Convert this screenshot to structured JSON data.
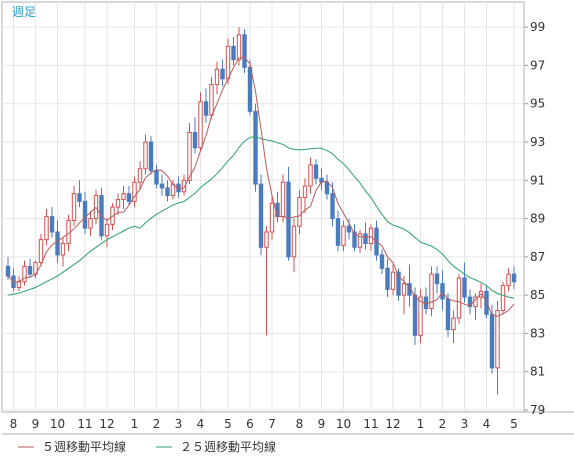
{
  "chart_data": {
    "type": "candlestick",
    "period_label": "週足",
    "xlabel": "",
    "ylabel": "",
    "ylim": [
      79,
      100
    ],
    "y_ticks": [
      99,
      97,
      95,
      93,
      91,
      89,
      87,
      85,
      83,
      81,
      79
    ],
    "x_ticks": [
      {
        "label": "8",
        "index": 1
      },
      {
        "label": "9",
        "index": 5
      },
      {
        "label": "10",
        "index": 9
      },
      {
        "label": "11",
        "index": 14
      },
      {
        "label": "12",
        "index": 18
      },
      {
        "label": "1",
        "index": 23
      },
      {
        "label": "2",
        "index": 27
      },
      {
        "label": "3",
        "index": 31
      },
      {
        "label": "4",
        "index": 35
      },
      {
        "label": "5",
        "index": 40
      },
      {
        "label": "6",
        "index": 44
      },
      {
        "label": "7",
        "index": 48
      },
      {
        "label": "8",
        "index": 53
      },
      {
        "label": "9",
        "index": 57
      },
      {
        "label": "10",
        "index": 61
      },
      {
        "label": "11",
        "index": 66
      },
      {
        "label": "12",
        "index": 70
      },
      {
        "label": "1",
        "index": 75
      },
      {
        "label": "2",
        "index": 79
      },
      {
        "label": "3",
        "index": 83
      },
      {
        "label": "4",
        "index": 87
      },
      {
        "label": "5",
        "index": 92
      }
    ],
    "ohlc": [
      [
        86.5,
        87.0,
        85.8,
        86.0
      ],
      [
        86.0,
        86.4,
        85.2,
        85.4
      ],
      [
        85.4,
        86.0,
        85.2,
        85.7
      ],
      [
        85.7,
        86.8,
        85.5,
        86.5
      ],
      [
        86.5,
        86.9,
        85.9,
        86.1
      ],
      [
        86.1,
        86.8,
        85.9,
        86.7
      ],
      [
        86.7,
        88.2,
        86.5,
        87.9
      ],
      [
        87.9,
        89.5,
        87.6,
        89.1
      ],
      [
        89.1,
        89.6,
        88.0,
        88.3
      ],
      [
        88.3,
        88.9,
        86.7,
        87.1
      ],
      [
        87.1,
        88.0,
        86.5,
        87.7
      ],
      [
        87.7,
        89.2,
        87.3,
        88.9
      ],
      [
        88.9,
        90.7,
        88.6,
        90.3
      ],
      [
        90.3,
        91.0,
        89.6,
        89.9
      ],
      [
        89.9,
        90.4,
        88.2,
        88.5
      ],
      [
        88.5,
        89.4,
        88.1,
        89.0
      ],
      [
        89.0,
        90.5,
        88.7,
        90.2
      ],
      [
        90.2,
        90.6,
        87.9,
        88.1
      ],
      [
        88.1,
        89.0,
        87.5,
        88.7
      ],
      [
        88.7,
        89.8,
        88.4,
        89.6
      ],
      [
        89.6,
        90.3,
        89.2,
        90.0
      ],
      [
        90.0,
        90.7,
        89.5,
        90.3
      ],
      [
        90.3,
        90.7,
        89.7,
        89.9
      ],
      [
        89.9,
        91.2,
        89.6,
        90.9
      ],
      [
        90.9,
        92.0,
        90.5,
        91.6
      ],
      [
        91.6,
        93.4,
        91.3,
        93.0
      ],
      [
        93.0,
        93.3,
        91.3,
        91.5
      ],
      [
        91.5,
        91.8,
        90.6,
        90.8
      ],
      [
        90.8,
        91.3,
        90.2,
        90.6
      ],
      [
        90.6,
        91.0,
        89.9,
        90.2
      ],
      [
        90.2,
        91.0,
        90.0,
        90.8
      ],
      [
        90.8,
        91.2,
        90.1,
        90.4
      ],
      [
        90.4,
        91.3,
        90.2,
        91.0
      ],
      [
        91.0,
        94.0,
        90.8,
        93.5
      ],
      [
        93.5,
        94.3,
        92.4,
        92.7
      ],
      [
        92.7,
        95.6,
        92.5,
        95.1
      ],
      [
        95.1,
        95.8,
        94.0,
        94.4
      ],
      [
        94.4,
        96.4,
        94.2,
        96.0
      ],
      [
        96.0,
        97.2,
        95.5,
        96.8
      ],
      [
        96.8,
        97.3,
        95.9,
        96.3
      ],
      [
        96.3,
        98.4,
        96.0,
        98.0
      ],
      [
        98.0,
        98.5,
        97.0,
        97.3
      ],
      [
        97.3,
        99.0,
        97.0,
        98.6
      ],
      [
        98.6,
        98.9,
        96.6,
        96.9
      ],
      [
        96.9,
        97.3,
        94.4,
        94.6
      ],
      [
        94.6,
        95.0,
        90.4,
        90.8
      ],
      [
        90.8,
        91.3,
        87.1,
        87.5
      ],
      [
        87.5,
        88.6,
        82.9,
        88.3
      ],
      [
        88.3,
        90.2,
        87.9,
        89.8
      ],
      [
        89.8,
        90.4,
        88.8,
        89.1
      ],
      [
        89.1,
        91.3,
        88.8,
        90.9
      ],
      [
        90.9,
        91.7,
        86.8,
        87.0
      ],
      [
        87.0,
        89.0,
        86.2,
        88.6
      ],
      [
        88.6,
        90.5,
        88.2,
        90.1
      ],
      [
        90.1,
        91.1,
        89.3,
        90.7
      ],
      [
        90.7,
        92.2,
        90.3,
        91.8
      ],
      [
        91.8,
        92.1,
        90.8,
        91.1
      ],
      [
        91.1,
        91.6,
        90.5,
        90.9
      ],
      [
        90.9,
        91.3,
        90.0,
        90.3
      ],
      [
        90.3,
        90.9,
        88.6,
        89.0
      ],
      [
        89.0,
        89.4,
        87.3,
        87.6
      ],
      [
        87.6,
        88.9,
        87.3,
        88.6
      ],
      [
        88.6,
        89.0,
        87.9,
        88.3
      ],
      [
        88.3,
        88.7,
        87.3,
        87.5
      ],
      [
        87.5,
        88.4,
        87.2,
        88.2
      ],
      [
        88.2,
        88.8,
        87.4,
        87.7
      ],
      [
        87.7,
        88.7,
        87.3,
        88.5
      ],
      [
        88.5,
        88.9,
        86.8,
        87.1
      ],
      [
        87.1,
        87.4,
        86.1,
        86.4
      ],
      [
        86.4,
        86.9,
        84.9,
        85.3
      ],
      [
        85.3,
        86.6,
        85.0,
        86.2
      ],
      [
        86.2,
        86.4,
        84.7,
        85.0
      ],
      [
        85.0,
        86.0,
        84.0,
        85.6
      ],
      [
        85.6,
        86.6,
        84.4,
        85.0
      ],
      [
        85.0,
        85.4,
        82.4,
        82.9
      ],
      [
        82.9,
        85.3,
        82.5,
        84.9
      ],
      [
        84.9,
        85.4,
        84.0,
        84.3
      ],
      [
        84.3,
        86.5,
        83.9,
        86.1
      ],
      [
        86.1,
        86.5,
        85.1,
        85.6
      ],
      [
        85.6,
        86.3,
        84.2,
        84.8
      ],
      [
        84.8,
        85.1,
        82.8,
        83.2
      ],
      [
        83.2,
        84.2,
        82.5,
        83.8
      ],
      [
        83.8,
        86.1,
        83.5,
        85.9
      ],
      [
        85.9,
        86.7,
        84.6,
        84.9
      ],
      [
        84.9,
        85.3,
        84.0,
        84.4
      ],
      [
        84.4,
        85.1,
        83.7,
        84.9
      ],
      [
        84.9,
        85.6,
        84.3,
        85.2
      ],
      [
        85.2,
        85.5,
        83.8,
        84.0
      ],
      [
        84.0,
        84.5,
        80.9,
        81.2
      ],
      [
        81.2,
        84.7,
        79.8,
        84.2
      ],
      [
        84.2,
        85.7,
        84.0,
        85.5
      ],
      [
        85.5,
        86.4,
        85.2,
        86.1
      ],
      [
        86.1,
        86.5,
        85.3,
        85.7
      ]
    ],
    "series": [
      {
        "name": "５週移動平均線",
        "color": "#b85a5a",
        "source": "ma5"
      },
      {
        "name": "２５週移動平均線",
        "color": "#2aa06a",
        "source": "ma25"
      }
    ],
    "ma25_start": [
      [
        0,
        85.0
      ],
      [
        1,
        85.05
      ],
      [
        2,
        85.1
      ],
      [
        3,
        85.2
      ],
      [
        4,
        85.3
      ],
      [
        5,
        85.4
      ],
      [
        6,
        85.55
      ],
      [
        7,
        85.7
      ],
      [
        8,
        85.85
      ],
      [
        9,
        86.0
      ],
      [
        10,
        86.2
      ],
      [
        11,
        86.4
      ],
      [
        12,
        86.6
      ],
      [
        13,
        86.8
      ],
      [
        14,
        87.05
      ],
      [
        15,
        87.3
      ],
      [
        16,
        87.5
      ],
      [
        17,
        87.7
      ],
      [
        18,
        87.9
      ],
      [
        19,
        88.05
      ],
      [
        20,
        88.2
      ],
      [
        21,
        88.35
      ],
      [
        22,
        88.5
      ],
      [
        23,
        88.6
      ]
    ],
    "up_color": "#d05050",
    "down_color": "#4a7bbd"
  }
}
